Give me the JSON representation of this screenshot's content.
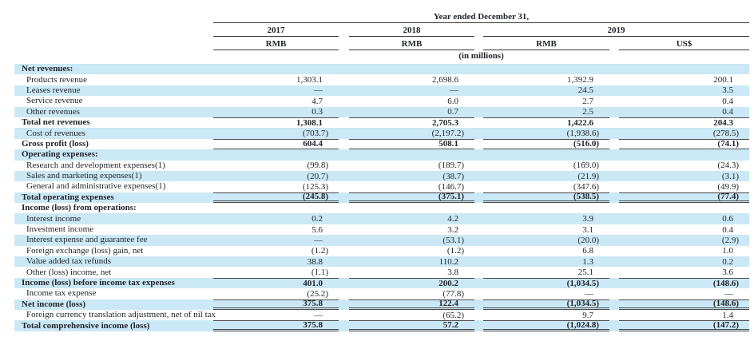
{
  "colors": {
    "stripe_blue": "#cbe8f6",
    "text": "#22262c",
    "rule": "#4a4a4a"
  },
  "table": {
    "header": {
      "period_title": "Year ended December 31,",
      "year_groups": [
        {
          "label": "2017",
          "span": 1
        },
        {
          "label": "2018",
          "span": 1
        },
        {
          "label": "2019",
          "span": 2
        }
      ],
      "currency_labels": [
        "RMB",
        "RMB",
        "RMB",
        "US$"
      ],
      "units_note": "(in millions)"
    },
    "rows": [
      {
        "label": "Net revenues:",
        "indent": false,
        "bold": true,
        "values": [
          "",
          "",
          "",
          ""
        ],
        "rule_top": null,
        "rule_bottom": null
      },
      {
        "label": "Products revenue",
        "indent": true,
        "bold": false,
        "values": [
          "1,303.1",
          "2,698.6",
          "1,392.9",
          "200.1"
        ],
        "rule_top": null,
        "rule_bottom": null
      },
      {
        "label": "Leases revenue",
        "indent": true,
        "bold": false,
        "values": [
          "—",
          "—",
          "24.5",
          "3.5"
        ],
        "rule_top": null,
        "rule_bottom": null
      },
      {
        "label": "Service revenue",
        "indent": true,
        "bold": false,
        "values": [
          "4.7",
          "6.0",
          "2.7",
          "0.4"
        ],
        "rule_top": null,
        "rule_bottom": null
      },
      {
        "label": "Other revenues",
        "indent": true,
        "bold": false,
        "values": [
          "0.3",
          "0.7",
          "2.5",
          "0.4"
        ],
        "rule_top": null,
        "rule_bottom": null
      },
      {
        "label": "Total net revenues",
        "indent": false,
        "bold": true,
        "values": [
          "1,308.1",
          "2,705.3",
          "1,422.6",
          "204.3"
        ],
        "rule_top": "single",
        "rule_bottom": null
      },
      {
        "label": "Cost of revenues",
        "indent": true,
        "bold": false,
        "values": [
          "(703.7)",
          "(2,197.2)",
          "(1,938.6)",
          "(278.5)"
        ],
        "rule_top": null,
        "rule_bottom": null
      },
      {
        "label": "Gross profit (loss)",
        "indent": false,
        "bold": true,
        "values": [
          "604.4",
          "508.1",
          "(516.0)",
          "(74.1)"
        ],
        "rule_top": "single",
        "rule_bottom": "single"
      },
      {
        "label": "Operating expenses:",
        "indent": false,
        "bold": true,
        "values": [
          "",
          "",
          "",
          ""
        ],
        "rule_top": null,
        "rule_bottom": null
      },
      {
        "label": "Research and development expenses(1)",
        "indent": true,
        "bold": false,
        "values": [
          "(99.8)",
          "(189.7)",
          "(169.0)",
          "(24.3)"
        ],
        "rule_top": null,
        "rule_bottom": null
      },
      {
        "label": "Sales and marketing expenses(1)",
        "indent": true,
        "bold": false,
        "values": [
          "(20.7)",
          "(38.7)",
          "(21.9)",
          "(3.1)"
        ],
        "rule_top": null,
        "rule_bottom": null
      },
      {
        "label": "General and administrative expenses(1)",
        "indent": true,
        "bold": false,
        "values": [
          "(125.3)",
          "(146.7)",
          "(347.6)",
          "(49.9)"
        ],
        "rule_top": null,
        "rule_bottom": null
      },
      {
        "label": "Total operating expenses",
        "indent": false,
        "bold": true,
        "values": [
          "(245.8)",
          "(375.1)",
          "(538.5)",
          "(77.4)"
        ],
        "rule_top": "single",
        "rule_bottom": "double"
      },
      {
        "label": "Income (loss) from operations:",
        "indent": false,
        "bold": true,
        "values": [
          "",
          "",
          "",
          ""
        ],
        "rule_top": null,
        "rule_bottom": null
      },
      {
        "label": "Interest income",
        "indent": true,
        "bold": false,
        "values": [
          "0.2",
          "4.2",
          "3.9",
          "0.6"
        ],
        "rule_top": null,
        "rule_bottom": null
      },
      {
        "label": "Investment income",
        "indent": true,
        "bold": false,
        "values": [
          "5.6",
          "3.2",
          "3.1",
          "0.4"
        ],
        "rule_top": null,
        "rule_bottom": null
      },
      {
        "label": "Interest expense and guarantee fee",
        "indent": true,
        "bold": false,
        "values": [
          "—",
          "(53.1)",
          "(20.0)",
          "(2.9)"
        ],
        "rule_top": null,
        "rule_bottom": null
      },
      {
        "label": "Foreign exchange (loss) gain, net",
        "indent": true,
        "bold": false,
        "values": [
          "(1.2)",
          "(1.2)",
          "6.8",
          "1.0"
        ],
        "rule_top": null,
        "rule_bottom": null
      },
      {
        "label": "Value added tax refunds",
        "indent": true,
        "bold": false,
        "values": [
          "38.8",
          "110.2",
          "1.3",
          "0.2"
        ],
        "rule_top": null,
        "rule_bottom": null
      },
      {
        "label": "Other (loss) income, net",
        "indent": true,
        "bold": false,
        "values": [
          "(1.1)",
          "3.8",
          "25.1",
          "3.6"
        ],
        "rule_top": null,
        "rule_bottom": null
      },
      {
        "label": "Income (loss) before income tax expenses",
        "indent": false,
        "bold": true,
        "values": [
          "401.0",
          "200.2",
          "(1,034.5)",
          "(148.6)"
        ],
        "rule_top": "single",
        "rule_bottom": null
      },
      {
        "label": "Income tax expense",
        "indent": true,
        "bold": false,
        "values": [
          "(25.2)",
          "(77.8)",
          "—",
          "—"
        ],
        "rule_top": null,
        "rule_bottom": null
      },
      {
        "label": "Net income (loss)",
        "indent": false,
        "bold": true,
        "values": [
          "375.8",
          "122.4",
          "(1,034.5)",
          "(148.6)"
        ],
        "rule_top": "single",
        "rule_bottom": "double"
      },
      {
        "label": "Foreign currency translation adjustment, net of nil tax",
        "indent": true,
        "bold": false,
        "values": [
          "—",
          "(65.2)",
          "9.7",
          "1.4"
        ],
        "rule_top": null,
        "rule_bottom": null
      },
      {
        "label": "Total comprehensive income (loss)",
        "indent": false,
        "bold": true,
        "values": [
          "375.8",
          "57.2",
          "(1,024.8)",
          "(147.2)"
        ],
        "rule_top": "single",
        "rule_bottom": "double"
      }
    ]
  }
}
